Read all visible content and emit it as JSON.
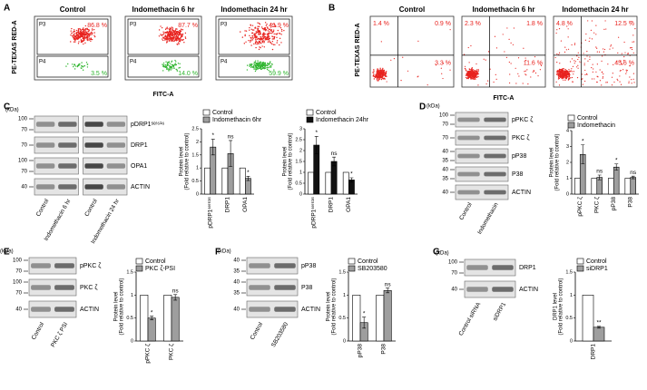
{
  "panels": {
    "A": {
      "label": "A",
      "y_label": "PE-TEXAS RED-A",
      "x_label": "FITC-A",
      "plots": [
        {
          "title": "Control",
          "gates": [
            "P3",
            "P4"
          ],
          "upper": "86.8 %",
          "lower": "3.5 %"
        },
        {
          "title": "Indomethacin 6 hr",
          "gates": [
            "P3",
            "P4"
          ],
          "upper": "87.7 %",
          "lower": "14.0 %"
        },
        {
          "title": "Indomethacin 24 hr",
          "gates": [
            "P3",
            "P4"
          ],
          "upper": "41.9 %",
          "lower": "59.9 %"
        }
      ]
    },
    "B": {
      "label": "B",
      "y_label": "PE-TEXAS RED-A",
      "x_label": "FITC-A",
      "plots": [
        {
          "title": "Control",
          "q1": "1.4 %",
          "q2": "0.9 %",
          "q4": "3.3 %"
        },
        {
          "title": "Indomethacin 6 hr",
          "q1": "2.3 %",
          "q2": "1.8 %",
          "q4": "11.6 %"
        },
        {
          "title": "Indomethacin 24 hr",
          "q1": "4.8 %",
          "q2": "12.5 %",
          "q4": "45.6 %"
        }
      ]
    },
    "C": {
      "label": "C",
      "blot": {
        "unit": "(kDa)",
        "lanes": [
          "Control",
          "Indomethacin 6 hr",
          "Control",
          "Indomethacin 24 hr"
        ],
        "rows": [
          {
            "name": "pDRP1ˢᵉʳ⁶¹⁶",
            "markers": [
              100,
              70
            ]
          },
          {
            "name": "DRP1",
            "markers": [
              70
            ]
          },
          {
            "name": "OPA1",
            "markers": [
              100,
              70
            ]
          },
          {
            "name": "ACTIN",
            "markers": [
              40
            ]
          }
        ]
      },
      "charts": [
        {
          "type": "bar",
          "y_label": [
            "Protein level",
            "(Fold relative to control)"
          ],
          "categories": [
            "pDRP1ˢᵉʳ⁶¹⁶",
            "DRP1",
            "OPA1"
          ],
          "series": [
            {
              "name": "Control",
              "color": "#ffffff",
              "values": [
                1,
                1,
                1
              ]
            },
            {
              "name": "Indomethacin 6hr",
              "color": "#9e9e9e",
              "values": [
                1.8,
                1.55,
                0.6
              ],
              "errors": [
                0.3,
                0.5,
                0.08
              ]
            }
          ],
          "annotations": [
            "*",
            "ns",
            "*"
          ],
          "ylim": [
            0,
            2.5
          ],
          "yticks": [
            0,
            0.5,
            1,
            1.5,
            2,
            2.5
          ]
        },
        {
          "type": "bar",
          "y_label": [
            "Protein level",
            "(Fold relative to control)"
          ],
          "categories": [
            "pDRP1ˢᵉʳ⁶¹⁶",
            "DRP1",
            "OPA1"
          ],
          "series": [
            {
              "name": "Control",
              "color": "#ffffff",
              "values": [
                1,
                1,
                1
              ]
            },
            {
              "name": "Indomethacin 24hr",
              "color": "#111111",
              "values": [
                2.25,
                1.5,
                0.65
              ],
              "errors": [
                0.4,
                0.2,
                0.1
              ]
            }
          ],
          "annotations": [
            "*",
            "ns",
            "*"
          ],
          "ylim": [
            0,
            3
          ],
          "yticks": [
            0,
            0.5,
            1,
            1.5,
            2,
            2.5,
            3
          ]
        }
      ]
    },
    "D": {
      "label": "D",
      "blot": {
        "unit": "(kDa)",
        "lanes": [
          "Control",
          "Indomethacin"
        ],
        "rows": [
          {
            "name": "pPKC ζ",
            "markers": [
              100,
              70
            ]
          },
          {
            "name": "PKC ζ",
            "markers": [
              70
            ]
          },
          {
            "name": "pP38",
            "markers": [
              40,
              35
            ]
          },
          {
            "name": "P38",
            "markers": [
              40,
              35
            ]
          },
          {
            "name": "ACTIN",
            "markers": [
              40
            ]
          }
        ]
      },
      "charts": [
        {
          "type": "bar",
          "y_label": [
            "Protein level",
            "(Fold relative to control)"
          ],
          "categories": [
            "pPKC ζ",
            "PKC ζ",
            "pP38",
            "P38"
          ],
          "series": [
            {
              "name": "Control",
              "color": "#ffffff",
              "values": [
                1,
                1,
                1,
                1
              ]
            },
            {
              "name": "Indomethacin",
              "color": "#9e9e9e",
              "values": [
                2.5,
                1.05,
                1.7,
                1.05
              ],
              "errors": [
                0.6,
                0.15,
                0.2,
                0.08
              ]
            }
          ],
          "annotations": [
            "*",
            "ns",
            "*",
            "ns"
          ],
          "ylim": [
            0,
            4
          ],
          "yticks": [
            0,
            1,
            2,
            3,
            4
          ]
        }
      ]
    },
    "E": {
      "label": "E",
      "blot": {
        "unit": "(kDa)",
        "lanes": [
          "Control",
          "PKC ζ PSI"
        ],
        "rows": [
          {
            "name": "pPKC ζ",
            "markers": [
              100,
              70
            ]
          },
          {
            "name": "PKC ζ",
            "markers": [
              100,
              70
            ]
          },
          {
            "name": "ACTIN",
            "markers": [
              40
            ]
          }
        ]
      },
      "charts": [
        {
          "type": "bar",
          "y_label": [
            "Protein level",
            "(Fold relative to control)"
          ],
          "categories": [
            "pPKC ζ",
            "PKC ζ"
          ],
          "series": [
            {
              "name": "Control",
              "color": "#ffffff",
              "values": [
                1,
                1
              ]
            },
            {
              "name": "PKC ζ-PSI",
              "color": "#9e9e9e",
              "values": [
                0.5,
                0.95
              ],
              "errors": [
                0.04,
                0.06
              ]
            }
          ],
          "annotations": [
            "*",
            "ns"
          ],
          "ylim": [
            0,
            1.5
          ],
          "yticks": [
            0,
            0.5,
            1,
            1.5
          ]
        }
      ]
    },
    "F": {
      "label": "F",
      "blot": {
        "unit": "(kDa)",
        "lanes": [
          "Control",
          "SB203580"
        ],
        "rows": [
          {
            "name": "pP38",
            "markers": [
              40,
              35
            ]
          },
          {
            "name": "P38",
            "markers": [
              40,
              35
            ]
          },
          {
            "name": "ACTIN",
            "markers": [
              40
            ]
          }
        ]
      },
      "charts": [
        {
          "type": "bar",
          "y_label": [
            "Protein level",
            "(Fold relative to control)"
          ],
          "categories": [
            "pP38",
            "P38"
          ],
          "series": [
            {
              "name": "Control",
              "color": "#ffffff",
              "values": [
                1,
                1
              ]
            },
            {
              "name": "SB203580",
              "color": "#9e9e9e",
              "values": [
                0.4,
                1.1
              ],
              "errors": [
                0.12,
                0.05
              ]
            }
          ],
          "annotations": [
            "*",
            "ns"
          ],
          "ylim": [
            0,
            1.5
          ],
          "yticks": [
            0,
            0.5,
            1,
            1.5
          ]
        }
      ]
    },
    "G": {
      "label": "G",
      "blot": {
        "unit": "(kDa)",
        "lanes": [
          "Control siRNA",
          "siDRP1"
        ],
        "rows": [
          {
            "name": "DRP1",
            "markers": [
              100,
              70
            ]
          },
          {
            "name": "ACTIN",
            "markers": [
              40
            ]
          }
        ]
      },
      "charts": [
        {
          "type": "bar",
          "y_label": [
            "DRP1 level",
            "(Fold relative to control)"
          ],
          "categories": [
            "DRP1"
          ],
          "series": [
            {
              "name": "Control",
              "color": "#ffffff",
              "values": [
                1
              ]
            },
            {
              "name": "siDRP1",
              "color": "#9e9e9e",
              "values": [
                0.3
              ],
              "errors": [
                0.02
              ]
            }
          ],
          "annotations": [
            "**"
          ],
          "ylim": [
            0,
            1.5
          ],
          "yticks": [
            0,
            0.5,
            1,
            1.5
          ]
        }
      ]
    }
  }
}
